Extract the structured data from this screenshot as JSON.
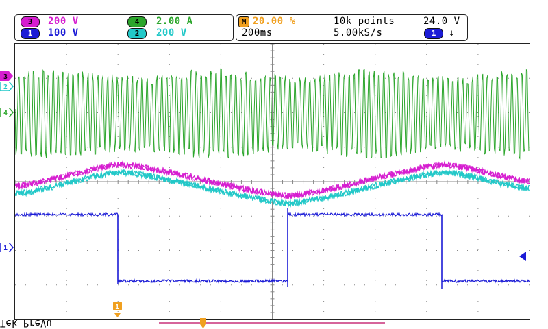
{
  "channels": {
    "ch3": {
      "number": "3",
      "scale": "200 V",
      "color": "#d61ed0"
    },
    "ch4": {
      "number": "4",
      "scale": "2.00 A",
      "color": "#2ca62c"
    },
    "ch1": {
      "number": "1",
      "scale": "100 V",
      "color": "#1b1bd6"
    },
    "ch2": {
      "number": "2",
      "scale": "200 V",
      "color": "#22c8c8"
    }
  },
  "math": {
    "badge": "M",
    "value": "20.00 %",
    "color": "#f0a020"
  },
  "acquisition": {
    "record_length": "10k points",
    "timebase": "200ms",
    "sample_rate": "5.00kS/s",
    "trigger_level": "24.0 V",
    "trigger_source": "1",
    "trigger_slope": "↓"
  },
  "status": {
    "run_state": "Tek PreVu"
  },
  "colors": {
    "grid": "#888888",
    "background": "#ffffff",
    "orange": "#f0a020"
  }
}
